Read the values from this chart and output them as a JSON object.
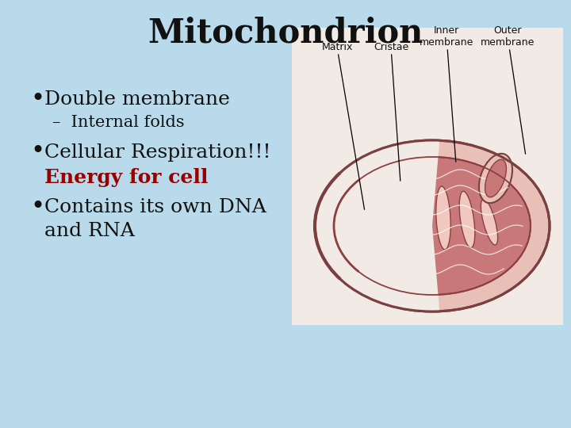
{
  "title": "Mitochondrion",
  "title_fontsize": 30,
  "title_fontweight": "bold",
  "title_color": "#111111",
  "background_color": "#b8daea",
  "bullet1": "Double membrane",
  "sub_bullet1": "–  Internal folds",
  "bullet2": "Cellular Respiration!!!",
  "bullet2_highlight": "Energy for cell",
  "bullet3_line1": "Contains its own DNA",
  "bullet3_line2": "and RNA",
  "bullet_fontsize": 18,
  "sub_bullet_fontsize": 15,
  "highlight_color": "#990000",
  "text_color": "#111111",
  "img_bg": "#f2ebe5",
  "outer_color": "#e8c0b8",
  "outer_edge": "#7a4040",
  "matrix_color": "#c87878",
  "crista_fill": "#f0c8c0",
  "crista_edge": "#8b4040",
  "white_line": "#ffffff",
  "label_color": "#111111",
  "label_fontsize": 9
}
